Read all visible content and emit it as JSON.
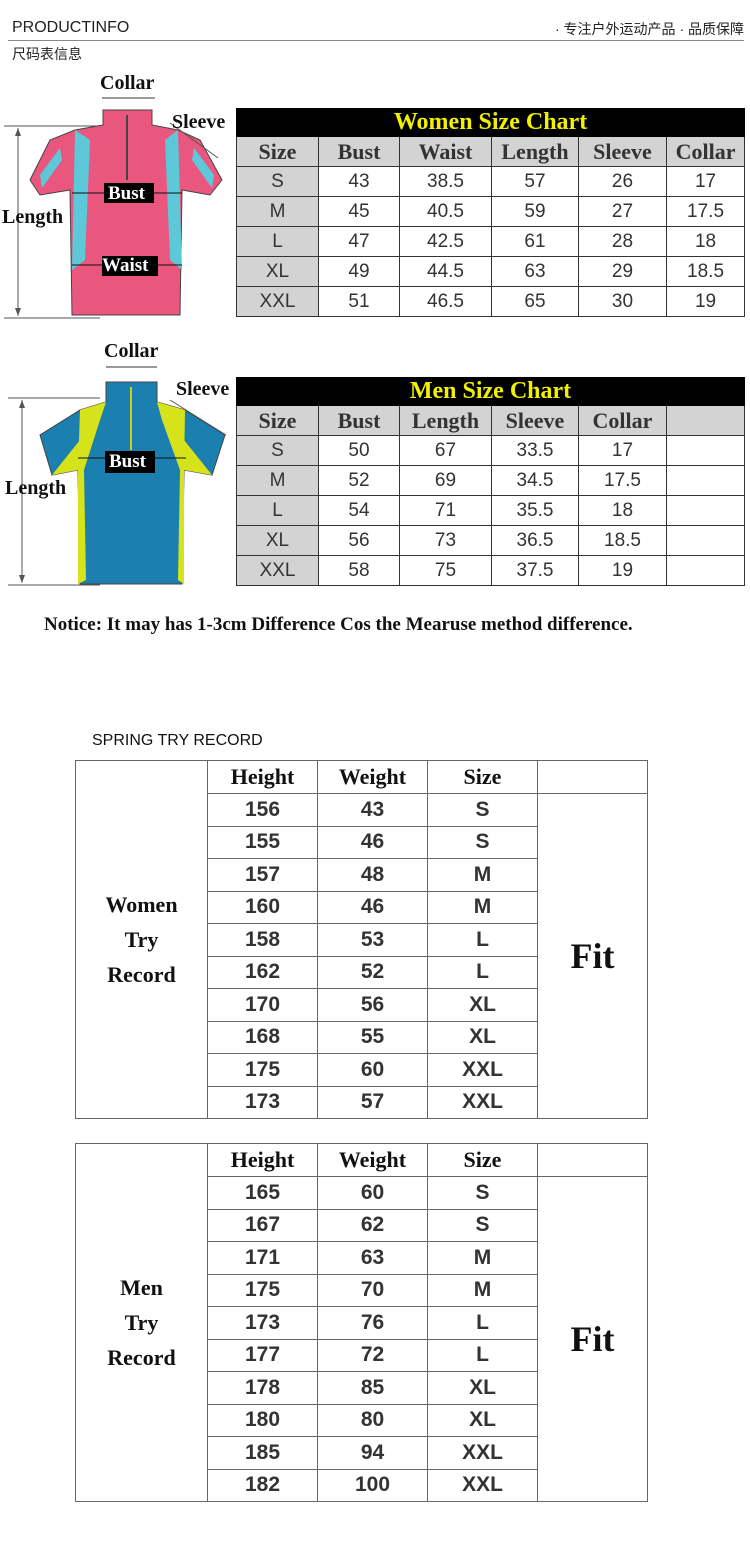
{
  "header": {
    "left": "PRODUCTINFO",
    "right": "· 专注户外运动产品 · 品质保障",
    "subtitle": "尺码表信息"
  },
  "women_diagram": {
    "collar": "Collar",
    "sleeve": "Sleeve",
    "length": "Length",
    "bust": "Bust",
    "waist": "Waist",
    "colors": {
      "body": "#e9577f",
      "accent": "#5cc8d8"
    }
  },
  "men_diagram": {
    "collar": "Collar",
    "sleeve": "Sleeve",
    "length": "Length",
    "bust": "Bust",
    "colors": {
      "body": "#1b7fb0",
      "accent": "#d6e21a"
    }
  },
  "women_chart": {
    "title": "Women Size Chart",
    "headers": [
      "Size",
      "Bust",
      "Waist",
      "Length",
      "Sleeve",
      "Collar"
    ],
    "rows": [
      [
        "S",
        "43",
        "38.5",
        "57",
        "26",
        "17"
      ],
      [
        "M",
        "45",
        "40.5",
        "59",
        "27",
        "17.5"
      ],
      [
        "L",
        "47",
        "42.5",
        "61",
        "28",
        "18"
      ],
      [
        "XL",
        "49",
        "44.5",
        "63",
        "29",
        "18.5"
      ],
      [
        "XXL",
        "51",
        "46.5",
        "65",
        "30",
        "19"
      ]
    ]
  },
  "men_chart": {
    "title": "Men Size Chart",
    "headers": [
      "Size",
      "Bust",
      "Length",
      "Sleeve",
      "Collar",
      ""
    ],
    "rows": [
      [
        "S",
        "50",
        "67",
        "33.5",
        "17",
        ""
      ],
      [
        "M",
        "52",
        "69",
        "34.5",
        "17.5",
        ""
      ],
      [
        "L",
        "54",
        "71",
        "35.5",
        "18",
        ""
      ],
      [
        "XL",
        "56",
        "73",
        "36.5",
        "18.5",
        ""
      ],
      [
        "XXL",
        "58",
        "75",
        "37.5",
        "19",
        ""
      ]
    ]
  },
  "notice": "Notice: It may has 1-3cm Difference Cos the Mearuse method difference.",
  "try_title": "SPRING TRY RECORD",
  "women_try": {
    "label": "Women Try Record",
    "result": "Fit",
    "headers": [
      "Height",
      "Weight",
      "Size",
      ""
    ],
    "rows": [
      [
        "156",
        "43",
        "S"
      ],
      [
        "155",
        "46",
        "S"
      ],
      [
        "157",
        "48",
        "M"
      ],
      [
        "160",
        "46",
        "M"
      ],
      [
        "158",
        "53",
        "L"
      ],
      [
        "162",
        "52",
        "L"
      ],
      [
        "170",
        "56",
        "XL"
      ],
      [
        "168",
        "55",
        "XL"
      ],
      [
        "175",
        "60",
        "XXL"
      ],
      [
        "173",
        "57",
        "XXL"
      ]
    ]
  },
  "men_try": {
    "label": "Men Try Record",
    "result": "Fit",
    "headers": [
      "Height",
      "Weight",
      "Size",
      ""
    ],
    "rows": [
      [
        "165",
        "60",
        "S"
      ],
      [
        "167",
        "62",
        "S"
      ],
      [
        "171",
        "63",
        "M"
      ],
      [
        "175",
        "70",
        "M"
      ],
      [
        "173",
        "76",
        "L"
      ],
      [
        "177",
        "72",
        "L"
      ],
      [
        "178",
        "85",
        "XL"
      ],
      [
        "180",
        "80",
        "XL"
      ],
      [
        "185",
        "94",
        "XXL"
      ],
      [
        "182",
        "100",
        "XXL"
      ]
    ]
  }
}
